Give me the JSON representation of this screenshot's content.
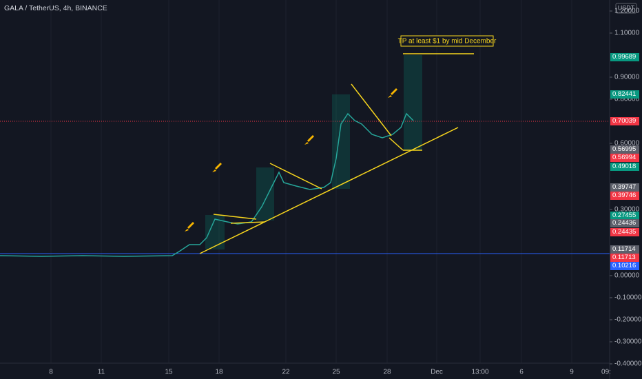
{
  "header": {
    "title": "GALA / TetherUS, 4h, BINANCE",
    "currency": "USDT"
  },
  "annotation": "TP at least $1 by mid December",
  "price_axis": {
    "ticks": [
      {
        "value": 1.2,
        "label": "1.20000"
      },
      {
        "value": 1.1,
        "label": "1.10000"
      },
      {
        "value": 0.9,
        "label": "0.90000"
      },
      {
        "value": 0.8,
        "label": "0.80000"
      },
      {
        "value": 0.6,
        "label": "0.60000"
      },
      {
        "value": 0.3,
        "label": "0.30000"
      },
      {
        "value": 0,
        "label": "0.00000"
      },
      {
        "value": -0.1,
        "label": "-0.10000"
      },
      {
        "value": -0.2,
        "label": "-0.20000"
      },
      {
        "value": -0.3,
        "label": "-0.30000"
      },
      {
        "value": -0.4,
        "label": "-0.40000"
      }
    ]
  },
  "price_labels": [
    "0.99689",
    "0.82441",
    "0.70039",
    "0.56995",
    "0.56994",
    "0.49018",
    "0.39747",
    "0.39746",
    "0.27455",
    "0.24436",
    "0.24435",
    "0.11714",
    "0.11713",
    "0.10216"
  ],
  "time_axis": [
    "8",
    "11",
    "15",
    "18",
    "22",
    "25",
    "28",
    "Dec",
    "13:00",
    "6",
    "9",
    "09:"
  ]
}
